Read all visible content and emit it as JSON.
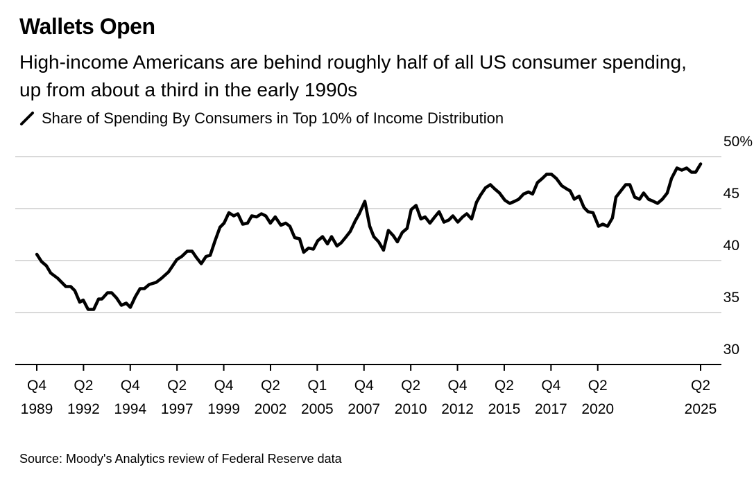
{
  "title": "Wallets Open",
  "subtitle": "High-income Americans are behind roughly half of all US consumer spending, up from about a third in the early 1990s",
  "source": "Source: Moody's Analytics review of Federal Reserve data",
  "chart_data": {
    "type": "line",
    "title": "Wallets Open",
    "xlabel": "",
    "ylabel": "",
    "ylim": [
      30,
      50
    ],
    "xlim": [
      1989.875,
      2025.375
    ],
    "grid": true,
    "legend_placement": "top-left",
    "line_color": "#000000",
    "grid_color": "#d9d9d9",
    "y_ticks": [
      {
        "value": 50,
        "label": "50%"
      },
      {
        "value": 45,
        "label": "45"
      },
      {
        "value": 40,
        "label": "40"
      },
      {
        "value": 35,
        "label": "35"
      },
      {
        "value": 30,
        "label": "30"
      }
    ],
    "x_ticks": [
      {
        "value": 1989.875,
        "q": "Q4",
        "year": "1989"
      },
      {
        "value": 1992.375,
        "q": "Q2",
        "year": "1992"
      },
      {
        "value": 1994.875,
        "q": "Q4",
        "year": "1994"
      },
      {
        "value": 1997.375,
        "q": "Q2",
        "year": "1997"
      },
      {
        "value": 1999.875,
        "q": "Q4",
        "year": "1999"
      },
      {
        "value": 2002.375,
        "q": "Q2",
        "year": "2002"
      },
      {
        "value": 2004.875,
        "q": "Q1",
        "year": "2005"
      },
      {
        "value": 2007.375,
        "q": "Q4",
        "year": "2007"
      },
      {
        "value": 2009.875,
        "q": "Q2",
        "year": "2010"
      },
      {
        "value": 2012.375,
        "q": "Q4",
        "year": "2012"
      },
      {
        "value": 2014.875,
        "q": "Q2",
        "year": "2015"
      },
      {
        "value": 2017.375,
        "q": "Q4",
        "year": "2017"
      },
      {
        "value": 2019.875,
        "q": "Q2",
        "year": "2020"
      },
      {
        "value": 2025.375,
        "q": "Q2",
        "year": "2025"
      }
    ],
    "series": [
      {
        "name": "Share of Spending By Consumers in Top 10% of Income Distribution",
        "x": [
          1989.88,
          1990.13,
          1990.39,
          1990.62,
          1990.99,
          1991.43,
          1991.69,
          1991.91,
          1992.17,
          1992.36,
          1992.62,
          1992.92,
          1993.18,
          1993.36,
          1993.66,
          1993.88,
          1994.14,
          1994.4,
          1994.66,
          1994.88,
          1995.14,
          1995.4,
          1995.63,
          1995.89,
          1996.26,
          1996.55,
          1996.92,
          1997.37,
          1997.63,
          1997.92,
          1998.18,
          1998.41,
          1998.67,
          1998.93,
          1999.15,
          1999.41,
          1999.67,
          1999.89,
          2000.15,
          2000.41,
          2000.63,
          2000.89,
          2001.15,
          2001.37,
          2001.63,
          2001.89,
          2002.12,
          2002.37,
          2002.63,
          2002.93,
          2003.19,
          2003.41,
          2003.67,
          2003.93,
          2004.15,
          2004.41,
          2004.67,
          2004.9,
          2005.16,
          2005.42,
          2005.64,
          2005.93,
          2006.15,
          2006.38,
          2006.64,
          2006.9,
          2007.12,
          2007.42,
          2007.68,
          2007.9,
          2008.16,
          2008.42,
          2008.68,
          2008.94,
          2009.16,
          2009.42,
          2009.68,
          2009.9,
          2010.16,
          2010.42,
          2010.64,
          2010.9,
          2011.16,
          2011.39,
          2011.65,
          2011.91,
          2012.13,
          2012.39,
          2012.65,
          2012.87,
          2013.13,
          2013.39,
          2013.61,
          2013.87,
          2014.13,
          2014.36,
          2014.62,
          2014.91,
          2015.17,
          2015.43,
          2015.65,
          2015.91,
          2016.17,
          2016.39,
          2016.65,
          2016.91,
          2017.14,
          2017.4,
          2017.66,
          2017.95,
          2018.21,
          2018.4,
          2018.62,
          2018.88,
          2019.14,
          2019.36,
          2019.62,
          2019.92,
          2020.14,
          2020.4,
          2020.66,
          2020.85,
          2021.11,
          2021.37,
          2021.59,
          2021.85,
          2022.11,
          2022.33,
          2022.59,
          2022.85,
          2023.07,
          2023.33,
          2023.59,
          2023.82,
          2024.11,
          2024.37,
          2024.63,
          2024.89,
          2025.11,
          2025.38
        ],
        "values": [
          40.6,
          39.9,
          39.5,
          38.8,
          38.3,
          37.5,
          37.5,
          37.1,
          36.0,
          36.2,
          35.3,
          35.3,
          36.3,
          36.3,
          36.9,
          36.9,
          36.4,
          35.7,
          35.9,
          35.5,
          36.5,
          37.3,
          37.3,
          37.7,
          37.9,
          38.3,
          38.9,
          40.1,
          40.4,
          40.9,
          40.9,
          40.3,
          39.7,
          40.4,
          40.5,
          41.9,
          43.2,
          43.6,
          44.6,
          44.3,
          44.5,
          43.5,
          43.6,
          44.3,
          44.2,
          44.5,
          44.3,
          43.6,
          44.2,
          43.4,
          43.6,
          43.3,
          42.2,
          42.1,
          40.8,
          41.2,
          41.1,
          41.9,
          42.3,
          41.6,
          42.3,
          41.4,
          41.7,
          42.2,
          42.8,
          43.8,
          44.5,
          45.7,
          43.3,
          42.3,
          41.8,
          41.0,
          42.9,
          42.4,
          41.8,
          42.7,
          43.1,
          44.9,
          45.3,
          44.0,
          44.2,
          43.6,
          44.2,
          44.7,
          43.7,
          43.9,
          44.3,
          43.7,
          44.2,
          44.5,
          44.0,
          45.6,
          46.3,
          47.0,
          47.3,
          46.9,
          46.5,
          45.8,
          45.5,
          45.7,
          45.9,
          46.4,
          46.6,
          46.4,
          47.5,
          47.9,
          48.3,
          48.3,
          47.9,
          47.2,
          46.9,
          46.7,
          45.9,
          46.2,
          45.1,
          44.7,
          44.6,
          43.3,
          43.5,
          43.3,
          44.1,
          46.1,
          46.7,
          47.3,
          47.3,
          46.1,
          45.9,
          46.5,
          45.9,
          45.7,
          45.5,
          45.9,
          46.5,
          47.9,
          48.9,
          48.7,
          48.9,
          48.5,
          48.5,
          49.3
        ]
      }
    ]
  }
}
